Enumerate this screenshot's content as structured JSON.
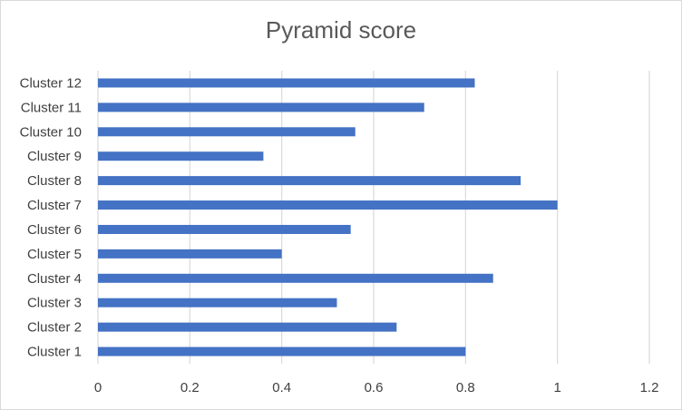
{
  "chart_data": {
    "type": "bar",
    "orientation": "horizontal",
    "title": "Pyramid score",
    "xlabel": "",
    "ylabel": "",
    "categories": [
      "Cluster 1",
      "Cluster 2",
      "Cluster 3",
      "Cluster 4",
      "Cluster 5",
      "Cluster 6",
      "Cluster 7",
      "Cluster 8",
      "Cluster 9",
      "Cluster 10",
      "Cluster 11",
      "Cluster 12"
    ],
    "values": [
      0.8,
      0.65,
      0.52,
      0.86,
      0.4,
      0.55,
      1.0,
      0.92,
      0.36,
      0.56,
      0.71,
      0.82
    ],
    "xlim": [
      0,
      1.2
    ],
    "xticks": [
      "0",
      "0.2",
      "0.4",
      "0.6",
      "0.8",
      "1",
      "1.2"
    ],
    "grid": "vertical",
    "legend": "none",
    "bar_color": "#4472C4",
    "grid_color": "#d9d9d9"
  }
}
